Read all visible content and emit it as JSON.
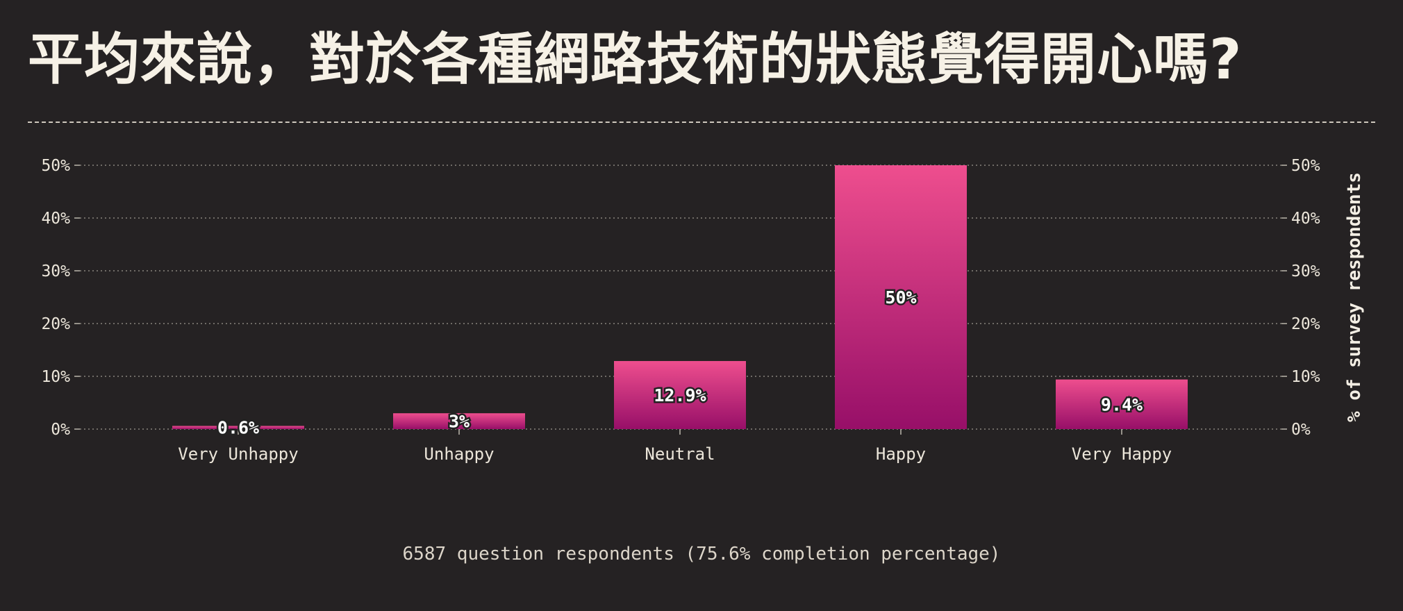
{
  "title": "平均來說，對於各種網路技術的狀態覺得開心嗎?",
  "footnote": "6587 question respondents (75.6% completion percentage)",
  "chart_data": {
    "type": "bar",
    "categories": [
      "Very Unhappy",
      "Unhappy",
      "Neutral",
      "Happy",
      "Very Happy"
    ],
    "values": [
      0.6,
      3,
      12.9,
      50,
      9.4
    ],
    "data_labels": [
      "0.6%",
      "3%",
      "12.9%",
      "50%",
      "9.4%"
    ],
    "ylabel": "% of survey respondents",
    "ylim": [
      0,
      50
    ],
    "yticks": [
      0,
      10,
      20,
      30,
      40,
      50
    ],
    "ytick_labels": [
      "0%",
      "10%",
      "20%",
      "30%",
      "40%",
      "50%"
    ],
    "grid": true,
    "colors": {
      "bar_top": "#ee4e8e",
      "bar_bottom": "#970f68",
      "background": "#252223",
      "grid": "#8a857e",
      "text": "#f3eee4"
    }
  }
}
